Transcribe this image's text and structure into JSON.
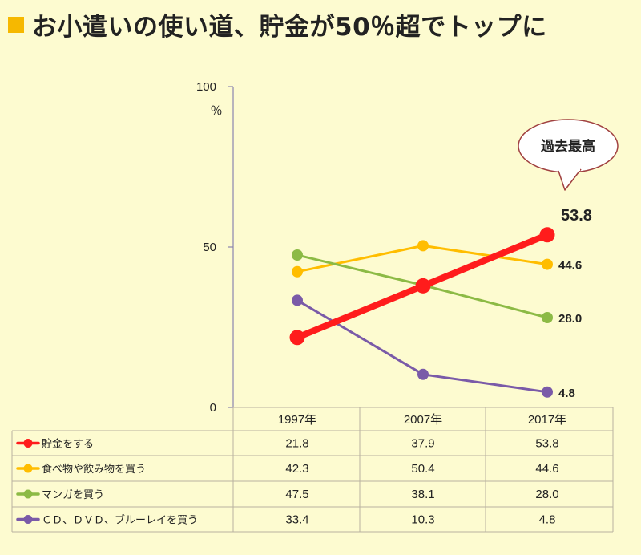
{
  "title": "お小遣いの使い道、貯金が50％超でトップに",
  "colors": {
    "background": "#fdfbd0",
    "title_square": "#f6b800",
    "grid": "#b9b2a0",
    "axis": "#8a84b0"
  },
  "chart_data": {
    "type": "line",
    "categories": [
      "1997年",
      "2007年",
      "2017年"
    ],
    "y_unit": "％",
    "yticks": [
      0,
      50,
      100
    ],
    "ylim": [
      0,
      100
    ],
    "callout": "過去最高",
    "series": [
      {
        "name": "貯金をする",
        "values": [
          21.8,
          37.9,
          53.8
        ],
        "color": "#ff1c1c",
        "end_label": "53.8",
        "emphasis": true
      },
      {
        "name": "食べ物や飲み物を買う",
        "values": [
          42.3,
          50.4,
          44.6
        ],
        "color": "#ffbd00",
        "end_label": "44.6"
      },
      {
        "name": "マンガを買う",
        "values": [
          47.5,
          38.1,
          28.0
        ],
        "color": "#8cba45",
        "end_label": "28.0"
      },
      {
        "name": "ＣＤ、ＤＶＤ、ブルーレイを買う",
        "values": [
          33.4,
          10.3,
          4.8
        ],
        "color": "#7a5aa8",
        "end_label": "4.8"
      }
    ],
    "table": {
      "rows": [
        [
          "21.8",
          "37.9",
          "53.8"
        ],
        [
          "42.3",
          "50.4",
          "44.6"
        ],
        [
          "47.5",
          "38.1",
          "28.0"
        ],
        [
          "33.4",
          "10.3",
          "4.8"
        ]
      ]
    }
  }
}
